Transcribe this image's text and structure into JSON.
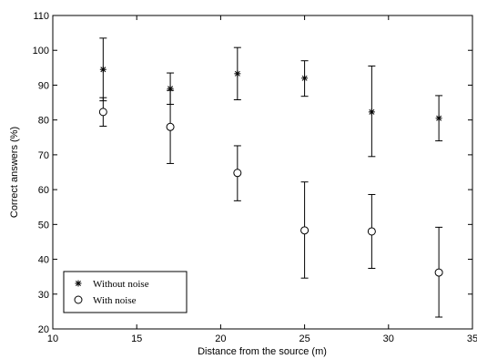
{
  "chart_data": {
    "type": "scatter",
    "title": "",
    "xlabel": "Distance from the source (m)",
    "ylabel": "Correct answers (%)",
    "xlim": [
      10,
      35
    ],
    "ylim": [
      20,
      110
    ],
    "xticks": [
      10,
      15,
      20,
      25,
      30,
      35
    ],
    "yticks": [
      20,
      30,
      40,
      50,
      60,
      70,
      80,
      90,
      100,
      110
    ],
    "grid": false,
    "legend": "bottom-left",
    "error_bars": true,
    "series": [
      {
        "name": "Without noise",
        "marker": "asterisk",
        "color": "#000000",
        "points": [
          {
            "x": 13,
            "y": 94.5,
            "low": 85.5,
            "high": 103.5
          },
          {
            "x": 17,
            "y": 89,
            "low": 84.5,
            "high": 93.5
          },
          {
            "x": 21,
            "y": 93.3,
            "low": 85.8,
            "high": 100.8
          },
          {
            "x": 25,
            "y": 92,
            "low": 86.8,
            "high": 97
          },
          {
            "x": 29,
            "y": 82.3,
            "low": 69.5,
            "high": 95.5
          },
          {
            "x": 33,
            "y": 80.5,
            "low": 74,
            "high": 87
          }
        ]
      },
      {
        "name": "With noise",
        "marker": "circle",
        "color": "#000000",
        "points": [
          {
            "x": 13,
            "y": 82.3,
            "low": 78.2,
            "high": 86.4
          },
          {
            "x": 17,
            "y": 78,
            "low": 67.5,
            "high": 88.5
          },
          {
            "x": 21,
            "y": 64.8,
            "low": 56.8,
            "high": 72.6
          },
          {
            "x": 25,
            "y": 48.3,
            "low": 34.6,
            "high": 62.2
          },
          {
            "x": 29,
            "y": 48,
            "low": 37.4,
            "high": 58.6
          },
          {
            "x": 33,
            "y": 36.2,
            "low": 23.4,
            "high": 49.2
          }
        ]
      }
    ]
  }
}
